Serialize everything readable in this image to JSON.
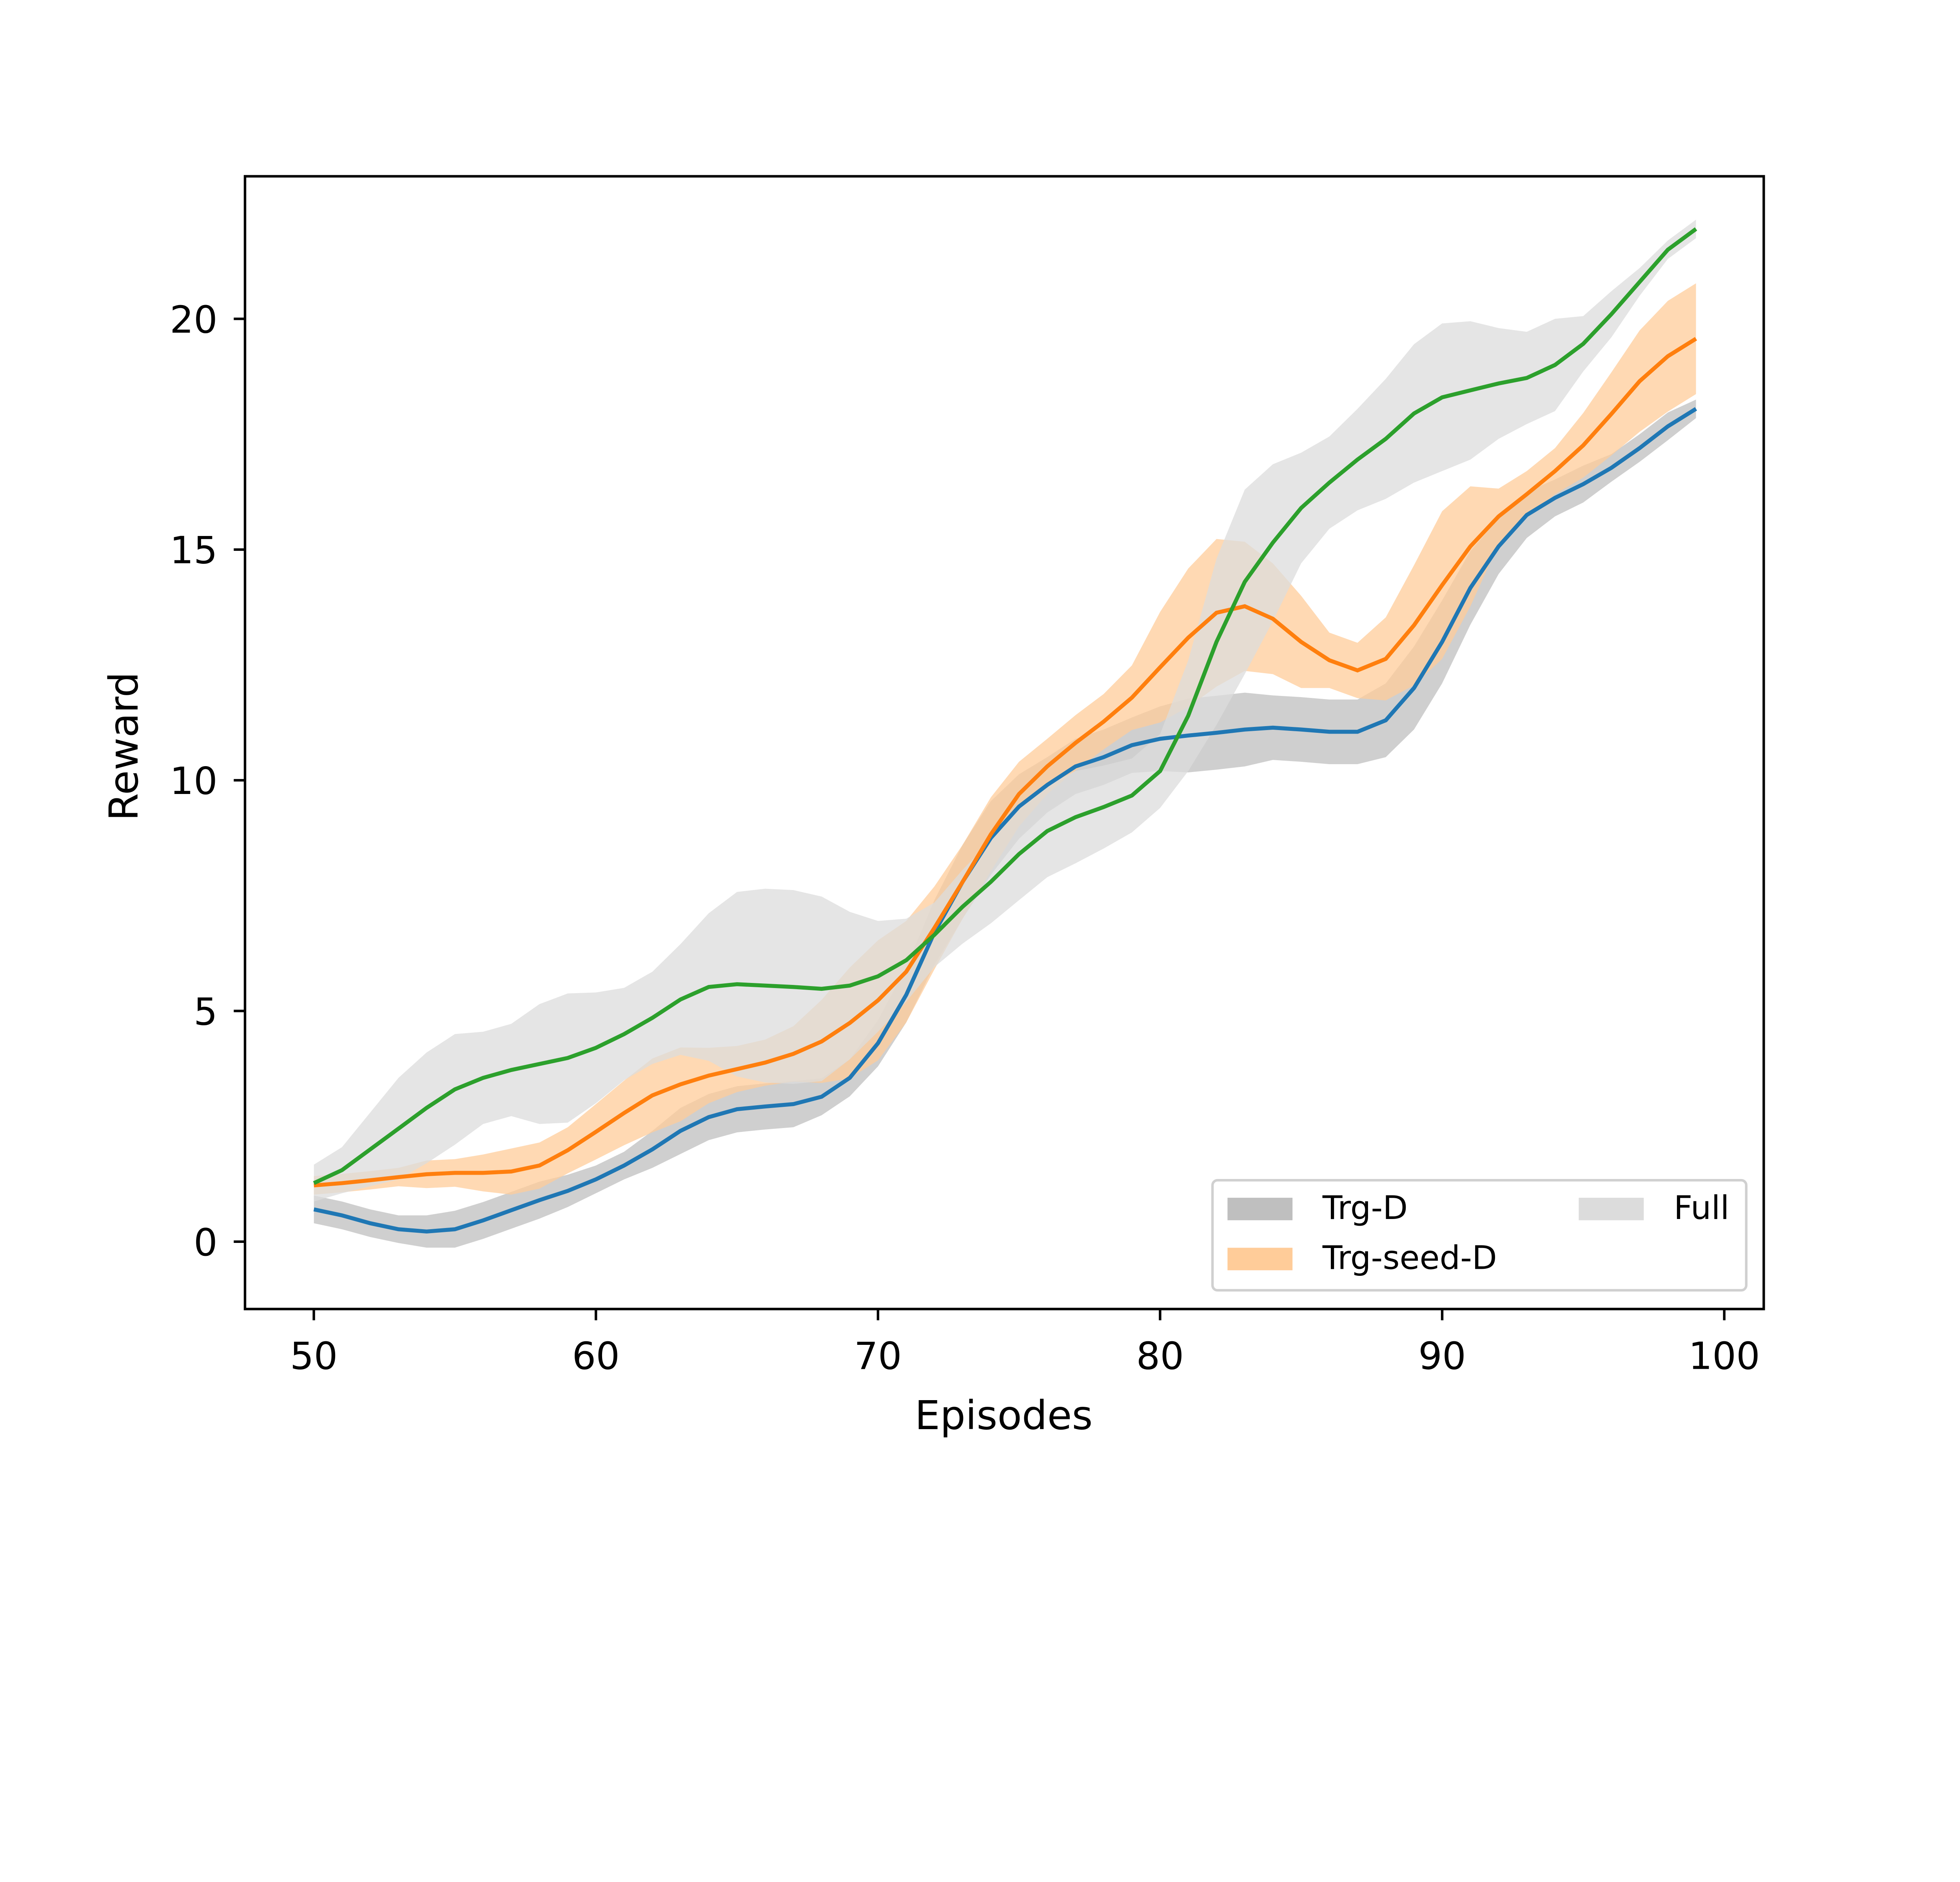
{
  "chart_data": {
    "type": "line",
    "title": "",
    "xlabel": "Episodes",
    "ylabel": "Reward",
    "xlim": [
      47.56,
      101.4
    ],
    "ylim": [
      -1.46,
      23.09
    ],
    "xticks": [
      50,
      60,
      70,
      80,
      90,
      100
    ],
    "yticks": [
      0,
      5,
      10,
      15,
      20
    ],
    "grid": false,
    "legend_placement": "lower-right",
    "legend_columns": 2,
    "x": [
      50,
      51,
      52,
      53,
      54,
      55,
      56,
      57,
      58,
      59,
      60,
      61,
      62,
      63,
      64,
      65,
      66,
      67,
      68,
      69,
      70,
      71,
      72,
      73,
      74,
      75,
      76,
      77,
      78,
      79,
      80,
      81,
      82,
      83,
      84,
      85,
      86,
      87,
      88,
      89,
      90,
      91,
      92,
      93,
      94,
      95,
      96,
      97,
      98,
      99
    ],
    "series": [
      {
        "name": "Trg-D",
        "line_color": "#1f77b4",
        "band_color": "#bfbfbf",
        "values": [
          0.7,
          0.57,
          0.4,
          0.27,
          0.22,
          0.27,
          0.46,
          0.68,
          0.9,
          1.1,
          1.35,
          1.65,
          2.0,
          2.4,
          2.7,
          2.87,
          2.93,
          2.98,
          3.14,
          3.55,
          4.3,
          5.35,
          6.7,
          7.8,
          8.75,
          9.43,
          9.9,
          10.3,
          10.5,
          10.76,
          10.9,
          10.97,
          11.03,
          11.1,
          11.14,
          11.1,
          11.05,
          11.05,
          11.3,
          12.0,
          13.0,
          14.17,
          15.07,
          15.75,
          16.12,
          16.42,
          16.77,
          17.2,
          17.67,
          18.05
        ],
        "band_halfwidth": [
          0.3,
          0.3,
          0.3,
          0.3,
          0.35,
          0.4,
          0.4,
          0.4,
          0.4,
          0.35,
          0.3,
          0.3,
          0.4,
          0.5,
          0.5,
          0.5,
          0.5,
          0.5,
          0.4,
          0.4,
          0.5,
          0.6,
          0.7,
          0.8,
          0.8,
          0.7,
          0.6,
          0.6,
          0.6,
          0.6,
          0.7,
          0.8,
          0.8,
          0.8,
          0.7,
          0.7,
          0.7,
          0.7,
          0.8,
          0.9,
          0.9,
          0.8,
          0.6,
          0.5,
          0.4,
          0.4,
          0.3,
          0.3,
          0.3,
          0.2
        ]
      },
      {
        "name": "Trg-seed-D",
        "line_color": "#ff7f0e",
        "band_color": "#ffcc99",
        "values": [
          1.22,
          1.27,
          1.33,
          1.4,
          1.46,
          1.49,
          1.49,
          1.52,
          1.65,
          1.98,
          2.38,
          2.79,
          3.17,
          3.41,
          3.6,
          3.74,
          3.88,
          4.07,
          4.34,
          4.74,
          5.23,
          5.85,
          6.8,
          7.8,
          8.83,
          9.7,
          10.3,
          10.81,
          11.27,
          11.79,
          12.45,
          13.09,
          13.63,
          13.77,
          13.5,
          13.0,
          12.6,
          12.38,
          12.63,
          13.36,
          14.23,
          15.07,
          15.72,
          16.2,
          16.7,
          17.26,
          17.94,
          18.65,
          19.19,
          19.57
        ],
        "band_halfwidth": [
          0.2,
          0.2,
          0.2,
          0.2,
          0.3,
          0.3,
          0.4,
          0.5,
          0.5,
          0.5,
          0.6,
          0.7,
          0.8,
          0.8,
          0.6,
          0.5,
          0.5,
          0.6,
          0.9,
          1.2,
          1.3,
          1.1,
          0.9,
          0.8,
          0.8,
          0.7,
          0.6,
          0.6,
          0.6,
          0.7,
          1.2,
          1.5,
          1.6,
          1.4,
          1.2,
          1.0,
          0.6,
          0.6,
          0.9,
          1.3,
          1.6,
          1.3,
          0.6,
          0.5,
          0.5,
          0.7,
          0.9,
          1.1,
          1.2,
          1.2
        ]
      },
      {
        "name": "Full",
        "line_color": "#2ca02c",
        "band_color": "#dcdcdc",
        "values": [
          1.27,
          1.55,
          2.0,
          2.45,
          2.9,
          3.3,
          3.55,
          3.72,
          3.85,
          3.98,
          4.2,
          4.5,
          4.85,
          5.25,
          5.52,
          5.58,
          5.55,
          5.52,
          5.48,
          5.55,
          5.75,
          6.1,
          6.65,
          7.26,
          7.8,
          8.4,
          8.9,
          9.2,
          9.42,
          9.67,
          10.2,
          11.4,
          13.0,
          14.3,
          15.15,
          15.9,
          16.45,
          16.95,
          17.4,
          17.95,
          18.3,
          18.45,
          18.6,
          18.72,
          19.0,
          19.46,
          20.1,
          20.8,
          21.5,
          21.95
        ],
        "band_halfwidth": [
          0.4,
          0.5,
          0.8,
          1.1,
          1.2,
          1.2,
          1.0,
          1.0,
          1.3,
          1.4,
          1.2,
          1.0,
          1.0,
          1.2,
          1.6,
          2.0,
          2.1,
          2.1,
          2.0,
          1.6,
          1.2,
          0.9,
          0.7,
          0.8,
          0.9,
          1.0,
          1.0,
          1.0,
          0.9,
          0.8,
          0.8,
          1.2,
          1.8,
          2.0,
          1.7,
          1.2,
          1.0,
          1.1,
          1.3,
          1.5,
          1.6,
          1.5,
          1.2,
          1.0,
          1.0,
          0.6,
          0.5,
          0.3,
          0.2,
          0.2
        ]
      }
    ]
  }
}
